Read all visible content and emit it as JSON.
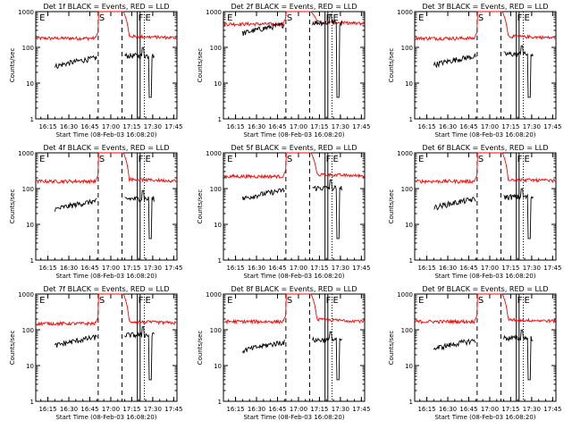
{
  "chart_data": {
    "type": "line",
    "ylabel": "Counts/sec",
    "xlabel": "Start Time (08-Feb-03 16:08:20)",
    "x_ticks": [
      "16:15",
      "16:30",
      "16:45",
      "17:00",
      "17:15",
      "17:30",
      "17:45"
    ],
    "y_ticks": [
      "1",
      "10",
      "100",
      "1000"
    ],
    "y_scale": "log",
    "ylim": [
      1,
      1000
    ],
    "xlim_minutes_after_start": [
      -2,
      99
    ],
    "grid": false,
    "colors": {
      "events": "#000000",
      "lld": "#ff0000",
      "axes": "#000000"
    },
    "markers": [
      {
        "label": "E",
        "time": "16:08:20",
        "line": "none"
      },
      {
        "label": "S",
        "time": "16:51",
        "line": "dashed"
      },
      {
        "label": "",
        "time": "17:08",
        "line": "dashed"
      },
      {
        "label": "F",
        "time": "17:19",
        "line": "solid"
      },
      {
        "label": "",
        "time": "17:21",
        "line": "solid"
      },
      {
        "label": "E",
        "time": "17:24",
        "line": "dotted"
      }
    ],
    "panels": [
      {
        "title": "Det 1f BLACK = Events, RED = LLD",
        "lld_base": 180,
        "event_base": 45
      },
      {
        "title": "Det 2f BLACK = Events, RED = LLD",
        "lld_base": 450,
        "event_base": 380
      },
      {
        "title": "Det 3f BLACK = Events, RED = LLD",
        "lld_base": 180,
        "event_base": 50
      },
      {
        "title": "Det 4f BLACK = Events, RED = LLD",
        "lld_base": 160,
        "event_base": 40
      },
      {
        "title": "Det 5f BLACK = Events, RED = LLD",
        "lld_base": 220,
        "event_base": 80
      },
      {
        "title": "Det 6f BLACK = Events, RED = LLD",
        "lld_base": 160,
        "event_base": 45
      },
      {
        "title": "Det 7f BLACK = Events, RED = LLD",
        "lld_base": 150,
        "event_base": 55
      },
      {
        "title": "Det 8f BLACK = Events, RED = LLD",
        "lld_base": 170,
        "event_base": 40
      },
      {
        "title": "Det 9f BLACK = Events, RED = LLD",
        "lld_base": 170,
        "event_base": 45
      }
    ]
  }
}
